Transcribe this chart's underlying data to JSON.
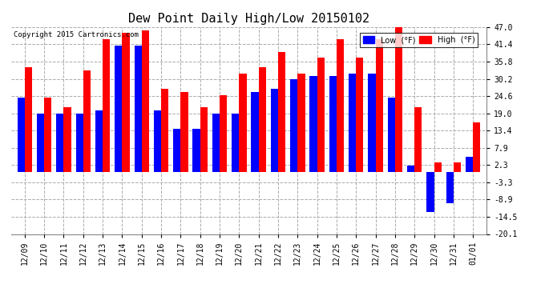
{
  "title": "Dew Point Daily High/Low 20150102",
  "copyright": "Copyright 2015 Cartronics.com",
  "dates": [
    "12/09",
    "12/10",
    "12/11",
    "12/12",
    "12/13",
    "12/14",
    "12/15",
    "12/16",
    "12/17",
    "12/18",
    "12/19",
    "12/20",
    "12/21",
    "12/22",
    "12/23",
    "12/24",
    "12/25",
    "12/26",
    "12/27",
    "12/28",
    "12/29",
    "12/30",
    "12/31",
    "01/01"
  ],
  "high": [
    34.0,
    24.0,
    21.0,
    33.0,
    43.0,
    45.0,
    46.0,
    27.0,
    26.0,
    21.0,
    25.0,
    32.0,
    34.0,
    39.0,
    32.0,
    37.0,
    43.0,
    37.0,
    43.0,
    47.0,
    21.0,
    3.0,
    3.0,
    16.0
  ],
  "low": [
    24.0,
    19.0,
    19.0,
    19.0,
    20.0,
    41.0,
    41.0,
    20.0,
    14.0,
    14.0,
    19.0,
    19.0,
    26.0,
    27.0,
    30.0,
    31.0,
    31.0,
    32.0,
    32.0,
    24.0,
    2.0,
    -13.0,
    -10.0,
    5.0
  ],
  "ylim": [
    -20.1,
    47.0
  ],
  "yticks": [
    47.0,
    41.4,
    35.8,
    30.2,
    24.6,
    19.0,
    13.4,
    7.9,
    2.3,
    -3.3,
    -8.9,
    -14.5,
    -20.1
  ],
  "low_color": "#0000ff",
  "high_color": "#ff0000",
  "bg_color": "#ffffff",
  "grid_color": "#aaaaaa",
  "bar_width": 0.38,
  "title_fontsize": 11,
  "label_fontsize": 7,
  "fig_width": 6.9,
  "fig_height": 3.75,
  "dpi": 100
}
